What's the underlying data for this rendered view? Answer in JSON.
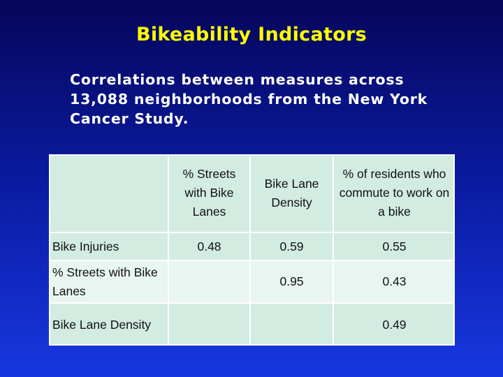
{
  "title": "Bikeability Indicators",
  "subtitle": "Correlations between measures across 13,088 neighborhoods from the New York Cancer Study.",
  "table": {
    "columns": [
      "",
      "% Streets with Bike Lanes",
      "Bike Lane Density",
      "% of residents who commute to work on a bike"
    ],
    "rows": [
      {
        "label": "Bike Injuries",
        "values": [
          "0.48",
          "0.59",
          "0.55"
        ]
      },
      {
        "label": "% Streets with Bike Lanes",
        "values": [
          "",
          "0.95",
          "0.43"
        ]
      },
      {
        "label": "Bike Lane Density",
        "values": [
          "",
          "",
          "0.49"
        ]
      }
    ]
  }
}
